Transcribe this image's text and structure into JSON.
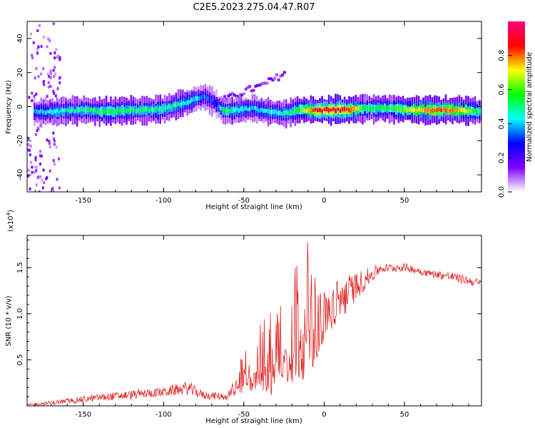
{
  "title": "C2E5.2023.275.04.47.R07",
  "chart_data": [
    {
      "type": "heatmap",
      "xlabel": "Height of straight line (km)",
      "ylabel": "Frequency (Hz)",
      "xlim": [
        -185,
        98
      ],
      "ylim": [
        -50,
        50
      ],
      "xticks": [
        -150,
        -100,
        -50,
        0,
        50
      ],
      "yticks": [
        -40,
        -20,
        0,
        20,
        40
      ],
      "colorbar": {
        "label": "Normalized spectral amplitude",
        "range": [
          0,
          1
        ],
        "ticks": [
          "0.0",
          "0.2",
          "0.4",
          "0.6",
          "0.8"
        ],
        "colors": [
          "#ffffff",
          "#8000ff",
          "#0000ff",
          "#00ffff",
          "#00ff00",
          "#ffff00",
          "#ff0000",
          "#ff0080"
        ]
      },
      "ridge": [
        {
          "x": -182,
          "f": -3,
          "a": 0.35
        },
        {
          "x": -170,
          "f": -3,
          "a": 0.45
        },
        {
          "x": -150,
          "f": -2,
          "a": 0.5
        },
        {
          "x": -135,
          "f": -3,
          "a": 0.55
        },
        {
          "x": -120,
          "f": -2,
          "a": 0.5
        },
        {
          "x": -105,
          "f": -2,
          "a": 0.5
        },
        {
          "x": -95,
          "f": 0,
          "a": 0.5
        },
        {
          "x": -85,
          "f": 3,
          "a": 0.45
        },
        {
          "x": -75,
          "f": 6,
          "a": 0.35
        },
        {
          "x": -68,
          "f": 2,
          "a": 0.3
        },
        {
          "x": -63,
          "f": -3,
          "a": 0.55
        },
        {
          "x": -55,
          "f": -2,
          "a": 0.45
        },
        {
          "x": -45,
          "f": -1,
          "a": 0.4
        },
        {
          "x": -35,
          "f": -3,
          "a": 0.45
        },
        {
          "x": -25,
          "f": -4,
          "a": 0.45
        },
        {
          "x": -15,
          "f": -2,
          "a": 0.6
        },
        {
          "x": -5,
          "f": -2,
          "a": 0.9
        },
        {
          "x": 5,
          "f": -2,
          "a": 0.9
        },
        {
          "x": 15,
          "f": -2,
          "a": 0.85
        },
        {
          "x": 25,
          "f": -1,
          "a": 0.55
        },
        {
          "x": 40,
          "f": -1,
          "a": 0.55
        },
        {
          "x": 55,
          "f": -2,
          "a": 0.7
        },
        {
          "x": 70,
          "f": -2,
          "a": 0.85
        },
        {
          "x": 85,
          "f": -2,
          "a": 0.75
        },
        {
          "x": 98,
          "f": -3,
          "a": 0.45
        }
      ],
      "upper_branch": [
        {
          "x": -70,
          "f": 2
        },
        {
          "x": -60,
          "f": 6
        },
        {
          "x": -50,
          "f": 10
        },
        {
          "x": -40,
          "f": 13
        },
        {
          "x": -30,
          "f": 18
        },
        {
          "x": -25,
          "f": 21
        }
      ]
    },
    {
      "type": "line",
      "xlabel": "Height of straight line (km)",
      "ylabel": "SNR (10 * v/v)",
      "y_multiplier": "(x10",
      "y_multiplier_exp": "4",
      "xlim": [
        -185,
        98
      ],
      "ylim": [
        0,
        1.85
      ],
      "xticks": [
        -150,
        -100,
        -50,
        0,
        50
      ],
      "yticks": [
        0.5,
        1.0,
        1.5
      ],
      "line_color": "#e02020",
      "envelope": [
        {
          "x": -185,
          "lo": 0.0,
          "hi": 0.02
        },
        {
          "x": -160,
          "lo": 0.02,
          "hi": 0.08
        },
        {
          "x": -140,
          "lo": 0.05,
          "hi": 0.13
        },
        {
          "x": -120,
          "lo": 0.07,
          "hi": 0.17
        },
        {
          "x": -100,
          "lo": 0.1,
          "hi": 0.2
        },
        {
          "x": -85,
          "lo": 0.12,
          "hi": 0.27
        },
        {
          "x": -75,
          "lo": 0.07,
          "hi": 0.16
        },
        {
          "x": -60,
          "lo": 0.06,
          "hi": 0.14
        },
        {
          "x": -55,
          "lo": 0.1,
          "hi": 0.4
        },
        {
          "x": -45,
          "lo": 0.15,
          "hi": 0.75
        },
        {
          "x": -35,
          "lo": 0.1,
          "hi": 1.05
        },
        {
          "x": -25,
          "lo": 0.15,
          "hi": 1.45
        },
        {
          "x": -15,
          "lo": 0.25,
          "hi": 1.65
        },
        {
          "x": -10,
          "lo": 0.35,
          "hi": 1.8
        },
        {
          "x": -5,
          "lo": 0.45,
          "hi": 1.35
        },
        {
          "x": 0,
          "lo": 0.7,
          "hi": 1.25
        },
        {
          "x": 10,
          "lo": 0.9,
          "hi": 1.4
        },
        {
          "x": 20,
          "lo": 1.15,
          "hi": 1.45
        },
        {
          "x": 35,
          "lo": 1.44,
          "hi": 1.54
        },
        {
          "x": 50,
          "lo": 1.46,
          "hi": 1.55
        },
        {
          "x": 65,
          "lo": 1.4,
          "hi": 1.48
        },
        {
          "x": 80,
          "lo": 1.35,
          "hi": 1.45
        },
        {
          "x": 98,
          "lo": 1.28,
          "hi": 1.37
        }
      ]
    }
  ]
}
